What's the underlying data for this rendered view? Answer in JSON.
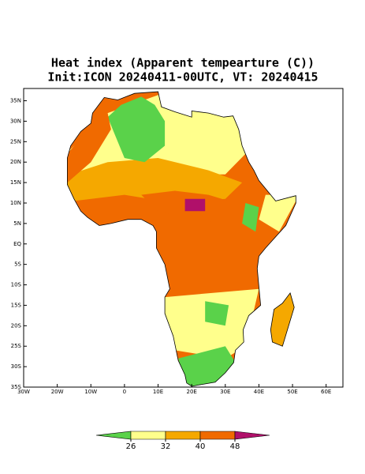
{
  "map": {
    "title": "Heat index (Apparent tempearture (C))",
    "subtitle": "Init:ICON 20240411-00UTC, VT: 20240415",
    "xlim": [
      -30,
      65
    ],
    "ylim": [
      -35,
      38
    ],
    "xticks": [
      {
        "value": -30,
        "label": "30W"
      },
      {
        "value": -20,
        "label": "20W"
      },
      {
        "value": -10,
        "label": "10W"
      },
      0,
      {
        "value": 10,
        "label": "10E"
      },
      {
        "value": 20,
        "label": "20E"
      },
      {
        "value": 30,
        "label": "30E"
      },
      {
        "value": 40,
        "label": "40E"
      },
      {
        "value": 50,
        "label": "50E"
      },
      {
        "value": 60,
        "label": "60E"
      }
    ],
    "yticks": [
      {
        "value": 35,
        "label": "35N"
      },
      {
        "value": 30,
        "label": "30N"
      },
      {
        "value": 25,
        "label": "25N"
      },
      {
        "value": 20,
        "label": "20N"
      },
      {
        "value": 15,
        "label": "15N"
      },
      {
        "value": 10,
        "label": "10N"
      },
      {
        "value": 5,
        "label": "5N"
      },
      {
        "value": 0,
        "label": "EQ"
      },
      {
        "value": -5,
        "label": "5S"
      },
      {
        "value": -10,
        "label": "10S"
      },
      {
        "value": -15,
        "label": "15S"
      },
      {
        "value": -20,
        "label": "20S"
      },
      {
        "value": -25,
        "label": "25S"
      },
      {
        "value": -30,
        "label": "30S"
      },
      {
        "value": -35,
        "label": "35S"
      }
    ],
    "colorbar": {
      "levels": [
        26,
        32,
        40,
        48
      ],
      "colors": [
        "#5ad24a",
        "#ffff8c",
        "#f5a800",
        "#f06a00",
        "#b0106a"
      ]
    }
  }
}
